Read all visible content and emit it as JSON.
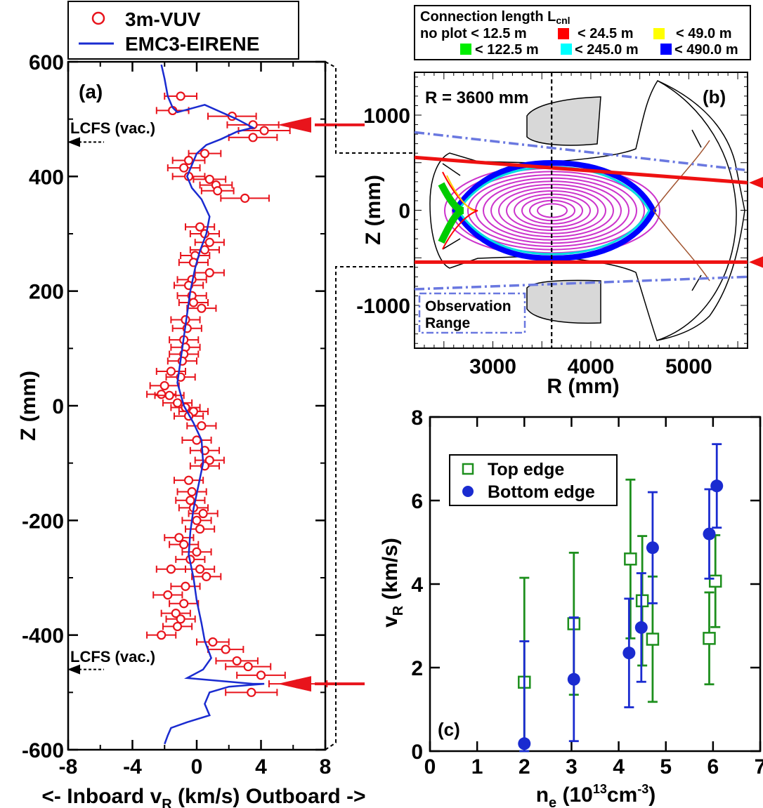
{
  "chart_data": [
    {
      "id": "a",
      "type": "scatter",
      "panel_label": "(a)",
      "xlabel": "<- Inboard  v",
      "xlabel_sub": "R",
      "xlabel_tail": " (km/s)  Outboard ->",
      "ylabel": "Z (mm)",
      "xlim": [
        -8,
        8
      ],
      "ylim": [
        -600,
        600
      ],
      "xticks": [
        -8,
        -4,
        0,
        4,
        8
      ],
      "yticks": [
        600,
        400,
        200,
        0,
        -200,
        -400,
        -600
      ],
      "legend": [
        {
          "label": "3m-VUV",
          "marker": "open-circle",
          "color": "#e8141c"
        },
        {
          "label": "EMC3-EIRENE",
          "marker": "line",
          "color": "#1a2bd0"
        }
      ],
      "annotations": {
        "lcfs_top": {
          "text": "LCFS (vac.)",
          "z": 460
        },
        "lcfs_bottom": {
          "text": "LCFS (vac.)",
          "z": -460
        },
        "arrow_top_z": 490,
        "arrow_bottom_z": -485
      },
      "series": [
        {
          "name": "3m-VUV",
          "color": "#e8141c",
          "points": [
            [
              -1.0,
              540,
              1.0
            ],
            [
              -1.5,
              515,
              1.0
            ],
            [
              2.2,
              505,
              1.5
            ],
            [
              3.5,
              490,
              1.6
            ],
            [
              4.2,
              480,
              1.6
            ],
            [
              3.5,
              468,
              1.5
            ],
            [
              0.5,
              440,
              1.0
            ],
            [
              -0.5,
              428,
              1.0
            ],
            [
              -0.8,
              415,
              1.0
            ],
            [
              -0.5,
              400,
              1.0
            ],
            [
              0.8,
              395,
              1.0
            ],
            [
              1.2,
              385,
              1.0
            ],
            [
              1.3,
              375,
              1.0
            ],
            [
              3.0,
              362,
              1.5
            ],
            [
              0.2,
              312,
              0.9
            ],
            [
              0.5,
              300,
              0.9
            ],
            [
              0.8,
              285,
              0.9
            ],
            [
              0.5,
              272,
              0.9
            ],
            [
              -0.1,
              262,
              0.9
            ],
            [
              -0.2,
              250,
              0.9
            ],
            [
              0.8,
              232,
              0.9
            ],
            [
              -0.3,
              220,
              0.9
            ],
            [
              -0.5,
              210,
              0.9
            ],
            [
              -0.3,
              192,
              0.9
            ],
            [
              -0.2,
              180,
              0.9
            ],
            [
              0.3,
              170,
              0.9
            ],
            [
              -0.7,
              150,
              0.9
            ],
            [
              -0.6,
              135,
              0.9
            ],
            [
              -0.8,
              115,
              0.9
            ],
            [
              -0.7,
              102,
              0.9
            ],
            [
              -0.8,
              90,
              0.9
            ],
            [
              -0.9,
              78,
              0.9
            ],
            [
              -1.6,
              60,
              0.9
            ],
            [
              -1.0,
              50,
              0.9
            ],
            [
              -2.0,
              35,
              0.9
            ],
            [
              -2.2,
              20,
              0.9
            ],
            [
              -1.7,
              18,
              0.9
            ],
            [
              -1.2,
              5,
              0.9
            ],
            [
              -0.7,
              -3,
              0.9
            ],
            [
              -0.2,
              -10,
              0.9
            ],
            [
              -0.5,
              -18,
              0.9
            ],
            [
              0.3,
              -35,
              0.9
            ],
            [
              0.0,
              -60,
              0.9
            ],
            [
              0.5,
              -78,
              0.9
            ],
            [
              0.8,
              -95,
              0.9
            ],
            [
              0.5,
              -105,
              0.9
            ],
            [
              -0.5,
              -130,
              0.9
            ],
            [
              -0.3,
              -150,
              0.9
            ],
            [
              -0.4,
              -165,
              0.9
            ],
            [
              -0.2,
              -178,
              0.9
            ],
            [
              0.4,
              -188,
              0.9
            ],
            [
              0.0,
              -200,
              0.9
            ],
            [
              0.2,
              -215,
              0.9
            ],
            [
              -1.1,
              -230,
              0.9
            ],
            [
              -0.8,
              -242,
              0.9
            ],
            [
              0.0,
              -255,
              0.9
            ],
            [
              -0.4,
              -268,
              0.9
            ],
            [
              0.2,
              -285,
              0.9
            ],
            [
              -1.6,
              -285,
              0.9
            ],
            [
              0.6,
              -298,
              0.9
            ],
            [
              -0.7,
              -315,
              0.9
            ],
            [
              -1.8,
              -330,
              0.9
            ],
            [
              -0.8,
              -345,
              0.9
            ],
            [
              -1.3,
              -362,
              0.9
            ],
            [
              -1.0,
              -372,
              0.9
            ],
            [
              -1.2,
              -385,
              0.9
            ],
            [
              -2.2,
              -400,
              0.9
            ],
            [
              1.0,
              -412,
              1.0
            ],
            [
              1.8,
              -425,
              1.1
            ],
            [
              2.5,
              -445,
              1.3
            ],
            [
              3.2,
              -455,
              1.4
            ],
            [
              4.0,
              -470,
              1.5
            ],
            [
              6.3,
              -485,
              1.8
            ],
            [
              3.4,
              -500,
              1.6
            ]
          ]
        },
        {
          "name": "EMC3-EIRENE",
          "color": "#1a2bd0",
          "line": [
            [
              -2.2,
              595
            ],
            [
              -2.0,
              570
            ],
            [
              -1.8,
              540
            ],
            [
              -1.5,
              520
            ],
            [
              -1.2,
              512
            ],
            [
              0.5,
              525
            ],
            [
              2.5,
              500
            ],
            [
              3.5,
              485
            ],
            [
              2.5,
              478
            ],
            [
              1.5,
              465
            ],
            [
              0.6,
              455
            ],
            [
              0.0,
              440
            ],
            [
              -0.3,
              420
            ],
            [
              -0.6,
              400
            ],
            [
              -0.3,
              380
            ],
            [
              0.3,
              360
            ],
            [
              0.8,
              330
            ],
            [
              0.6,
              300
            ],
            [
              0.2,
              270
            ],
            [
              -0.1,
              240
            ],
            [
              -0.4,
              200
            ],
            [
              -0.6,
              160
            ],
            [
              -0.8,
              120
            ],
            [
              -1.0,
              80
            ],
            [
              -1.2,
              40
            ],
            [
              -0.8,
              0
            ],
            [
              -0.2,
              -30
            ],
            [
              0.3,
              -60
            ],
            [
              0.4,
              -100
            ],
            [
              0.1,
              -140
            ],
            [
              -0.2,
              -180
            ],
            [
              -0.4,
              -220
            ],
            [
              -0.5,
              -260
            ],
            [
              -0.2,
              -300
            ],
            [
              0.0,
              -340
            ],
            [
              0.3,
              -380
            ],
            [
              0.5,
              -410
            ],
            [
              0.9,
              -440
            ],
            [
              0.4,
              -460
            ],
            [
              -0.6,
              -475
            ],
            [
              3.5,
              -485
            ],
            [
              4.2,
              -485
            ],
            [
              2.0,
              -490
            ],
            [
              0.8,
              -500
            ],
            [
              0.5,
              -520
            ],
            [
              0.8,
              -540
            ],
            [
              -0.6,
              -552
            ],
            [
              -1.6,
              -562
            ],
            [
              -1.8,
              -575
            ],
            [
              -2.0,
              -590
            ]
          ]
        }
      ]
    },
    {
      "id": "b",
      "type": "scatter",
      "panel_label": "(b)",
      "xlabel": "R (mm)",
      "ylabel": "Z (mm)",
      "xlim": [
        2200,
        5600
      ],
      "ylim": [
        -1450,
        1450
      ],
      "xticks": [
        3000,
        4000,
        5000
      ],
      "yticks": [
        1000,
        0,
        -1000
      ],
      "annotations": {
        "r_line_text": "R = 3600 mm",
        "r_line_value": 3600,
        "observation_range": "Observation\nRange"
      },
      "legend_title": "Connection length L",
      "legend_title_sub": "cnl",
      "legend": [
        {
          "label": "no plot < 12.5 m",
          "color": ""
        },
        {
          "label": "< 24.5 m",
          "color": "#ff0000"
        },
        {
          "label": "< 49.0 m",
          "color": "#ffff00"
        },
        {
          "label": "< 122.5 m",
          "color": "#00ee00"
        },
        {
          "label": "< 245.0 m",
          "color": "#00ffff"
        },
        {
          "label": "< 490.0 m",
          "color": "#0000ff"
        }
      ],
      "sight_lines": {
        "top": [
          [
            2200,
            555
          ],
          [
            5600,
            290
          ]
        ],
        "bottom": [
          [
            2200,
            -545
          ],
          [
            5600,
            -545
          ]
        ],
        "range_top": [
          [
            2200,
            820
          ],
          [
            5600,
            420
          ]
        ],
        "range_bottom": [
          [
            2200,
            -830
          ],
          [
            5600,
            -700
          ]
        ]
      }
    },
    {
      "id": "c",
      "type": "scatter",
      "panel_label": "(c)",
      "xlabel": "n",
      "xlabel_sub": "e",
      "xlabel_tail": " (10",
      "xlabel_sup": "13",
      "xlabel_tail2": "cm",
      "xlabel_sup2": "-3",
      "xlabel_end": ")",
      "ylabel": "v",
      "ylabel_sub": "R",
      "ylabel_tail": " (km/s)",
      "xlim": [
        0,
        7
      ],
      "ylim": [
        0,
        8
      ],
      "xticks": [
        0,
        1,
        2,
        3,
        4,
        5,
        6,
        7
      ],
      "yticks": [
        0,
        2,
        4,
        6,
        8
      ],
      "legend": [
        {
          "label": "Top edge",
          "marker": "open-square",
          "color": "#1d8f1d"
        },
        {
          "label": "Bottom edge",
          "marker": "filled-circle",
          "color": "#1a2bd0"
        }
      ],
      "series": [
        {
          "name": "Top edge",
          "color": "#1d8f1d",
          "points": [
            [
              2.0,
              1.65,
              2.5
            ],
            [
              3.05,
              3.05,
              1.7
            ],
            [
              4.25,
              4.6,
              1.9
            ],
            [
              4.5,
              3.6,
              1.55
            ],
            [
              4.72,
              2.68,
              1.5
            ],
            [
              5.92,
              2.7,
              1.1
            ],
            [
              6.05,
              4.07,
              1.1
            ]
          ]
        },
        {
          "name": "Bottom edge",
          "color": "#1a2bd0",
          "points": [
            [
              2.0,
              0.18,
              2.45
            ],
            [
              3.05,
              1.72,
              1.48
            ],
            [
              4.22,
              2.35,
              1.3
            ],
            [
              4.48,
              2.96,
              1.3
            ],
            [
              4.72,
              4.87,
              1.33
            ],
            [
              5.92,
              5.2,
              1.07
            ],
            [
              6.08,
              6.35,
              1.0
            ]
          ]
        }
      ]
    }
  ]
}
